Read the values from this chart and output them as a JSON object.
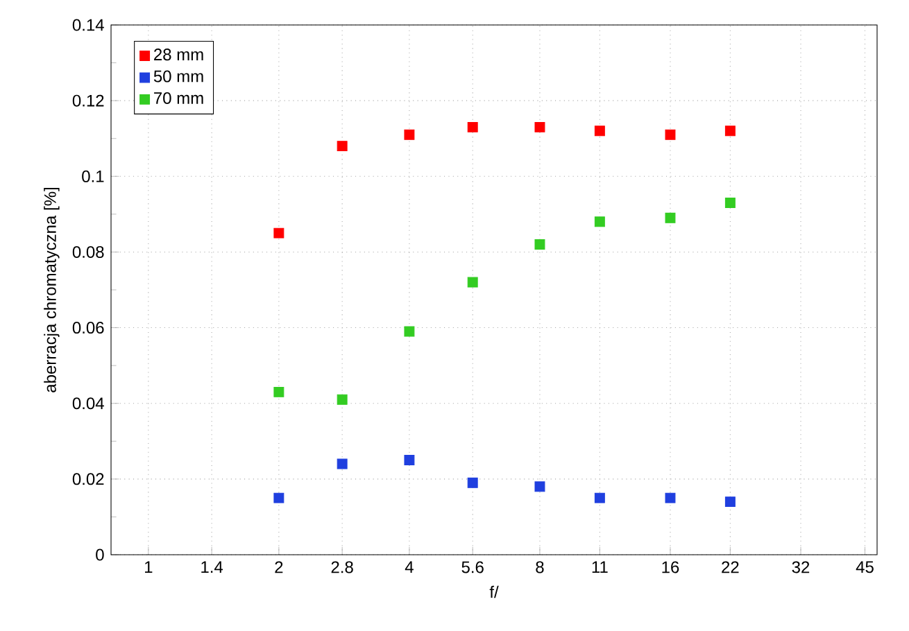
{
  "chart_data": {
    "type": "scatter",
    "xlabel": "f/",
    "ylabel": "aberracja chromatyczna [%]",
    "x": [
      2,
      2.8,
      4,
      5.6,
      8,
      11,
      16,
      22
    ],
    "series": [
      {
        "name": "28 mm",
        "color": "#ff0000",
        "values": [
          0.085,
          0.108,
          0.111,
          0.113,
          0.113,
          0.112,
          0.111,
          0.112
        ]
      },
      {
        "name": "50 mm",
        "color": "#1f3fdf",
        "values": [
          0.015,
          0.024,
          0.025,
          0.019,
          0.018,
          0.015,
          0.015,
          0.014
        ]
      },
      {
        "name": "70 mm",
        "color": "#33cc22",
        "values": [
          0.043,
          0.041,
          0.059,
          0.072,
          0.082,
          0.088,
          0.089,
          0.093
        ]
      }
    ],
    "log": "x",
    "xlim": [
      0.82,
      48
    ],
    "ylim": [
      0,
      0.14
    ],
    "xticks": [
      1,
      1.4,
      2,
      2.8,
      4,
      5.6,
      8,
      11,
      16,
      22,
      32,
      45
    ],
    "yticks": [
      0,
      0.02,
      0.04,
      0.06,
      0.08,
      0.1,
      0.12,
      0.14
    ],
    "grid": true,
    "legend": "top left",
    "marker": "square"
  }
}
